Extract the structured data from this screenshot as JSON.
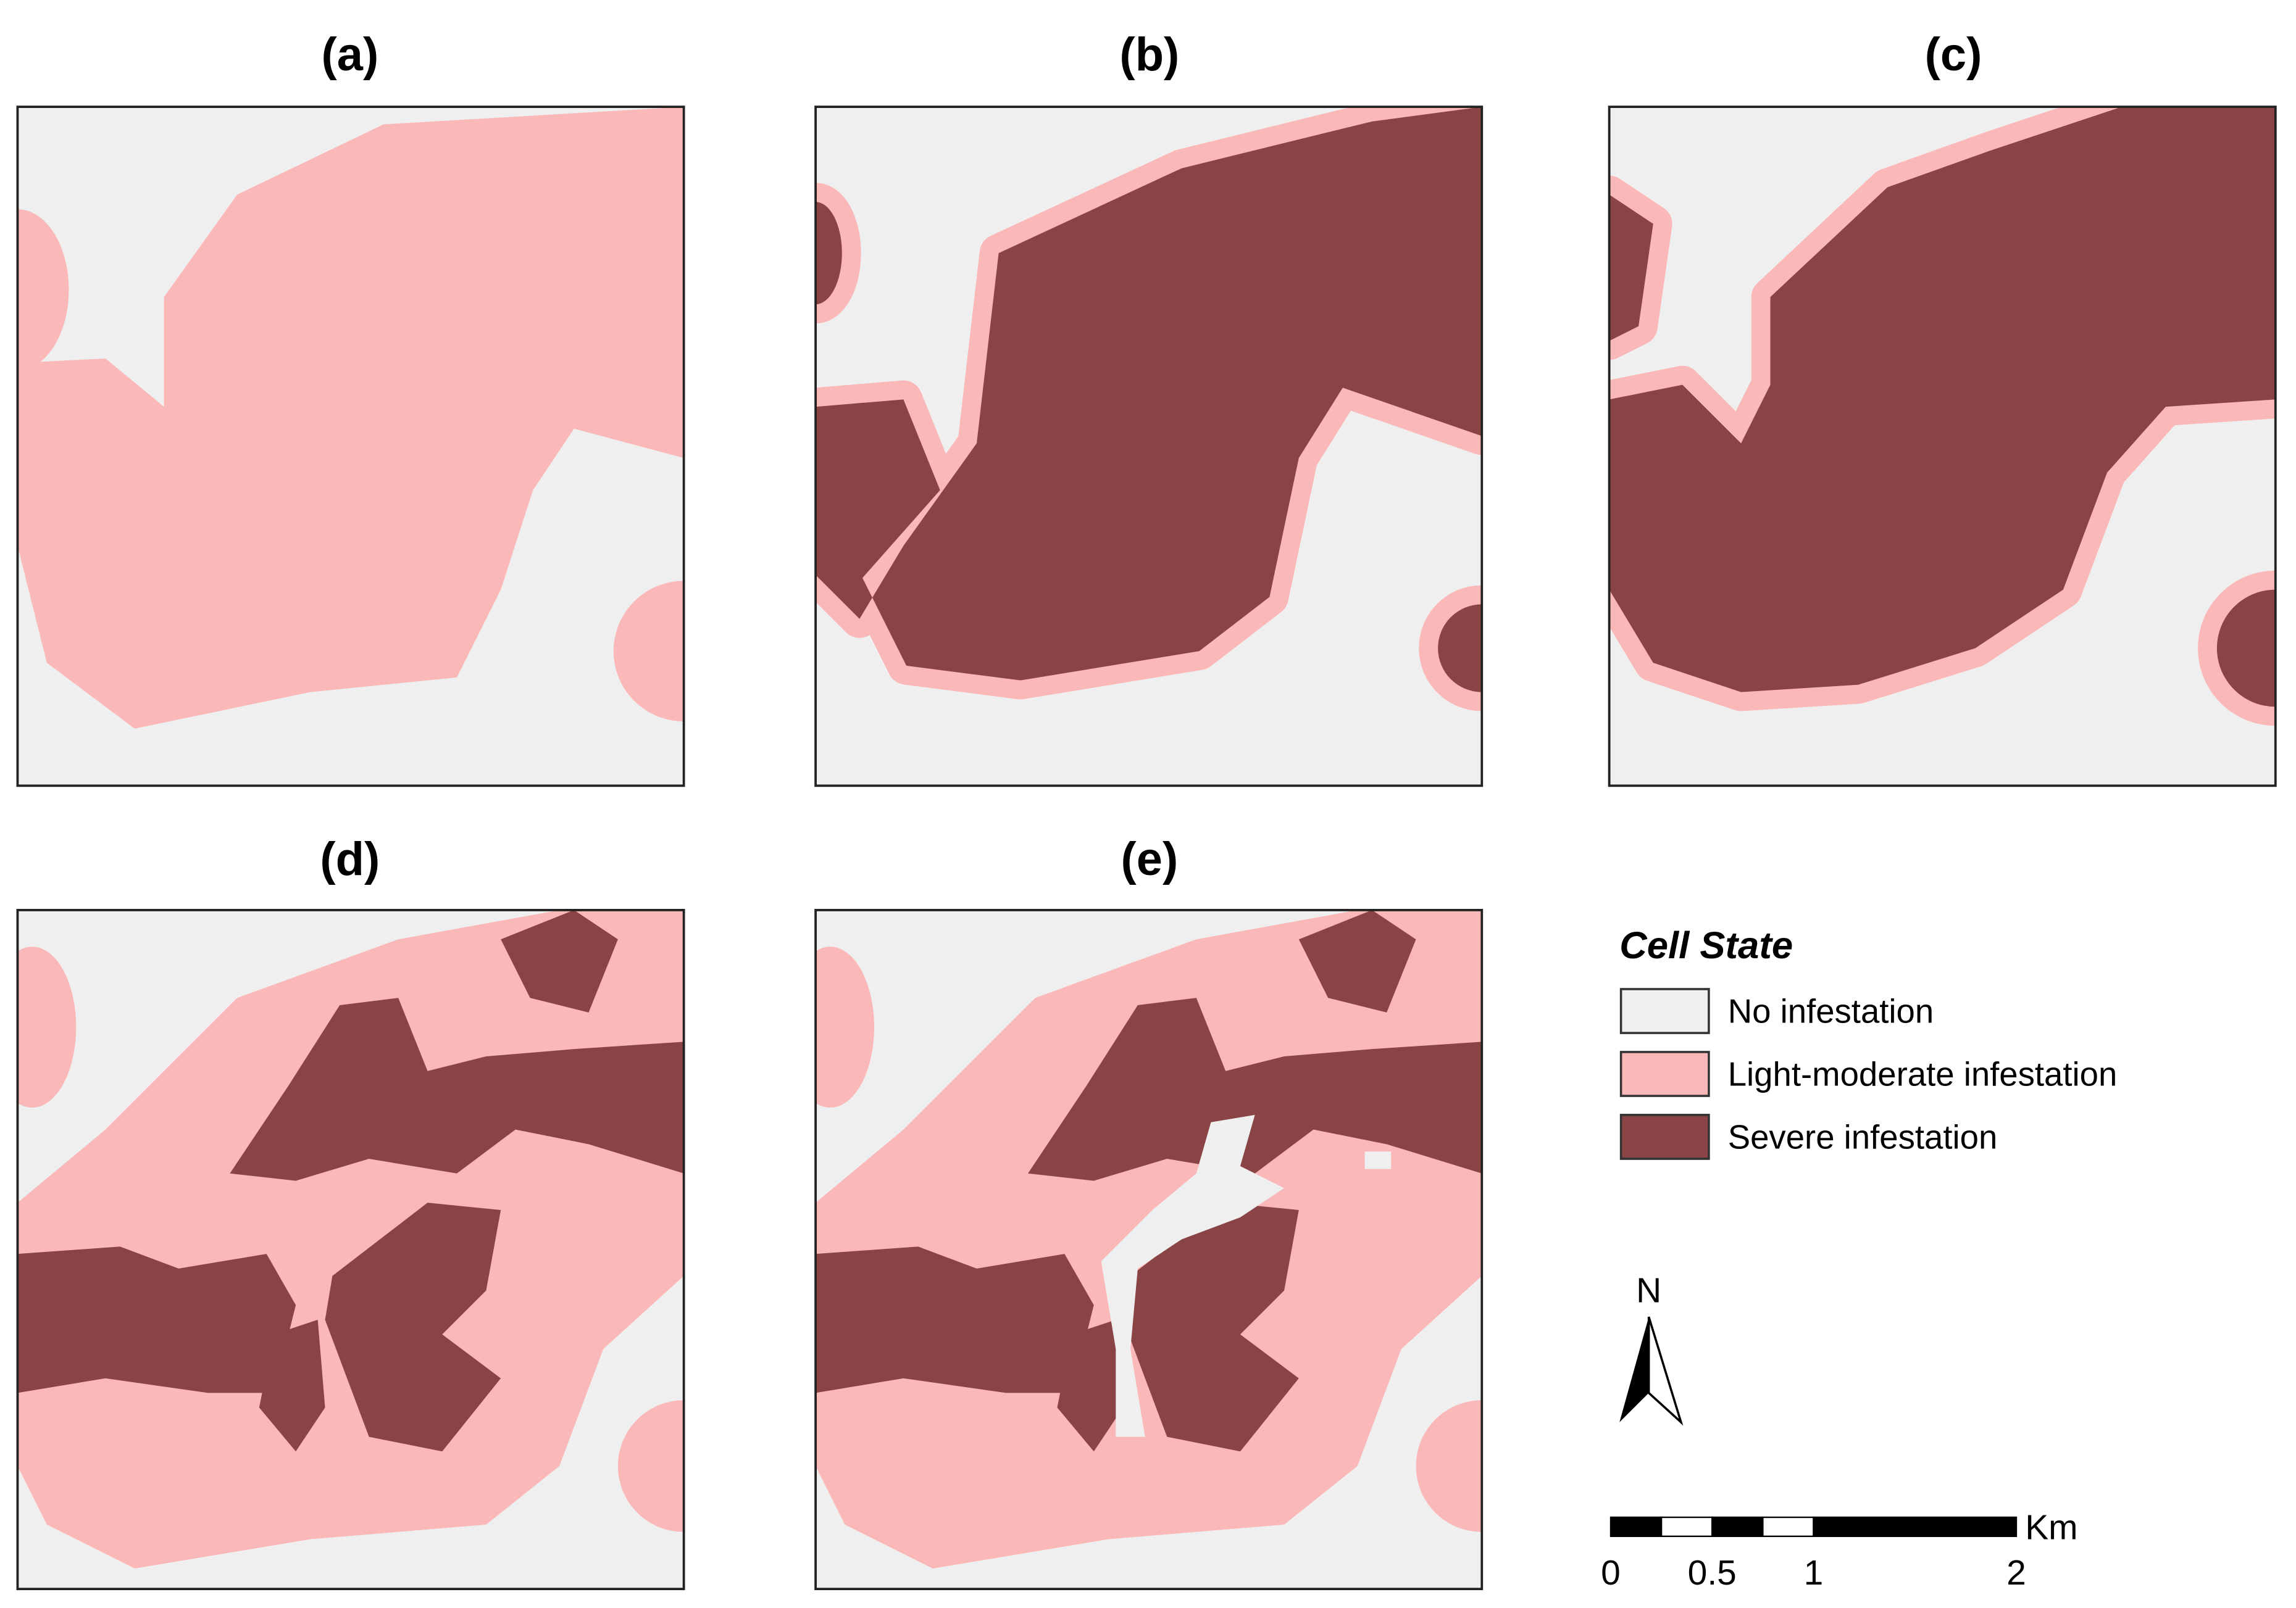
{
  "panels": [
    {
      "label": "(a)"
    },
    {
      "label": "(b)"
    },
    {
      "label": "(c)"
    },
    {
      "label": "(d)"
    },
    {
      "label": "(e)"
    }
  ],
  "legend": {
    "title": "Cell State",
    "items": [
      {
        "label": "No infestation",
        "color": "#efefef"
      },
      {
        "label": "Light-moderate infestation",
        "color": "#fbb8b8"
      },
      {
        "label": "Severe infestation",
        "color": "#8b4446"
      }
    ]
  },
  "north_arrow": {
    "label": "N"
  },
  "scale_bar": {
    "unit": "Km",
    "ticks": [
      0,
      0.5,
      1,
      2
    ]
  }
}
